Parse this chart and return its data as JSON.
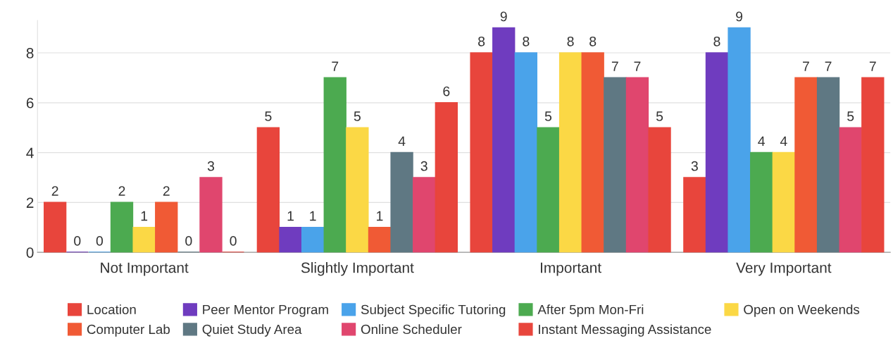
{
  "chart_data": {
    "type": "bar",
    "categories": [
      "Not Important",
      "Slightly Important",
      "Important",
      "Very Important"
    ],
    "series": [
      {
        "name": "Location",
        "color": "#e8453c",
        "values": [
          2,
          5,
          8,
          3
        ]
      },
      {
        "name": "Peer Mentor Program",
        "color": "#6f3cbf",
        "values": [
          0,
          1,
          9,
          8
        ]
      },
      {
        "name": "Subject Specific Tutoring",
        "color": "#4aa3ea",
        "values": [
          0,
          1,
          8,
          9
        ]
      },
      {
        "name": "After 5pm Mon-Fri",
        "color": "#4caa50",
        "values": [
          2,
          7,
          5,
          4
        ]
      },
      {
        "name": "Open on Weekends",
        "color": "#fbd845",
        "values": [
          1,
          5,
          8,
          4
        ]
      },
      {
        "name": "Computer Lab",
        "color": "#f05a35",
        "values": [
          2,
          1,
          8,
          7
        ]
      },
      {
        "name": "Quiet Study Area",
        "color": "#5f7883",
        "values": [
          0,
          4,
          7,
          7
        ]
      },
      {
        "name": "Online Scheduler",
        "color": "#e0466e",
        "values": [
          3,
          3,
          7,
          5
        ]
      },
      {
        "name": "Instant Messaging Assistance",
        "color": "#e8453c",
        "values": [
          0,
          6,
          5,
          7
        ]
      }
    ],
    "ylim": [
      0,
      9.3
    ],
    "yticks": [
      0,
      2,
      4,
      6,
      8
    ],
    "grid": "y",
    "legend": "bottom",
    "data_labels": true
  }
}
